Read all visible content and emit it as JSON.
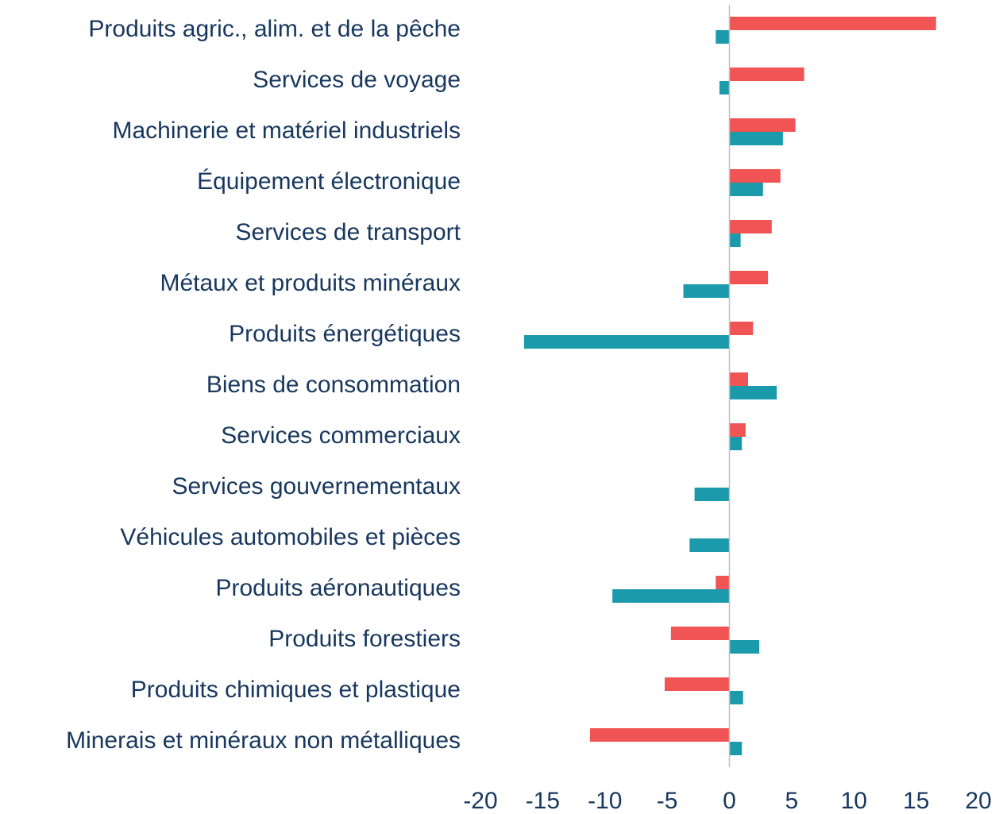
{
  "chart_data": {
    "type": "hbar",
    "categories": [
      "Produits agric., alim. et de la pêche",
      "Services de voyage",
      "Machinerie et matériel industriels",
      "Équipement électronique",
      "Services de transport",
      "Métaux et produits minéraux",
      "Produits énergétiques",
      "Biens de consommation",
      "Services commerciaux",
      "Services gouvernementaux",
      "Véhicules automobiles et pièces",
      "Produits aéronautiques",
      "Produits forestiers",
      "Produits chimiques et plastique",
      "Minerais et minéraux non métalliques"
    ],
    "series": [
      {
        "color": "#f05454",
        "values": [
          16.6,
          6.0,
          5.3,
          4.1,
          3.4,
          3.1,
          1.9,
          1.5,
          1.3,
          0,
          0,
          -1.1,
          -4.7,
          -5.2,
          -11.2
        ]
      },
      {
        "color": "#1a9aaa",
        "values": [
          -1.1,
          -0.8,
          4.3,
          2.7,
          0.9,
          -3.7,
          -16.5,
          3.8,
          1.0,
          -2.8,
          -3.2,
          -9.4,
          2.4,
          1.1,
          1.0
        ]
      }
    ],
    "xlim": [
      -20,
      20
    ],
    "xticks": [
      -20,
      -15,
      -10,
      -5,
      0,
      5,
      10,
      15,
      20
    ]
  }
}
